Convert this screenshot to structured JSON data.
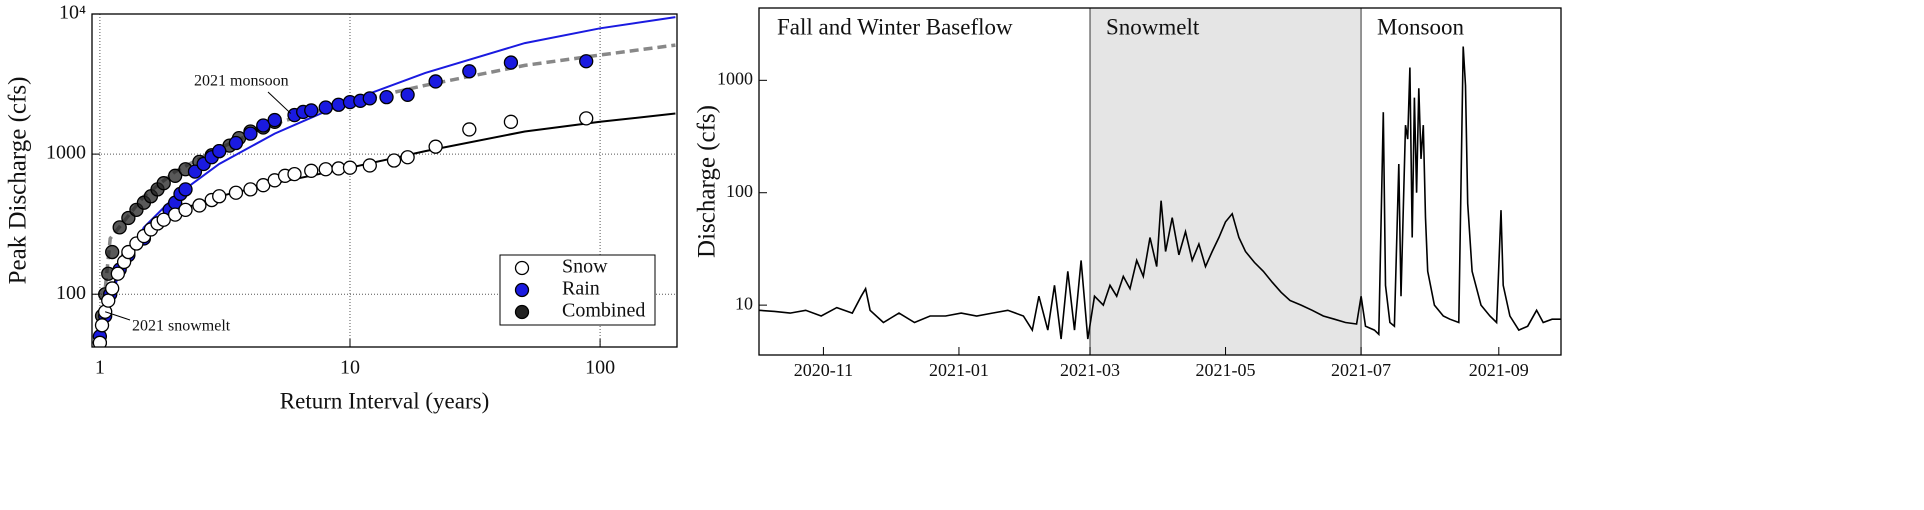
{
  "chart_data": [
    {
      "type": "scatter",
      "xlabel": "Return Interval (years)",
      "ylabel": "Peak Discharge (cfs)",
      "xlog": true,
      "ylog": true,
      "grid": true,
      "legend": "lower right",
      "xlim": [
        0.93,
        203
      ],
      "ylim": [
        42,
        10000
      ],
      "xticks": [
        1,
        10,
        100
      ],
      "yticks": [
        100,
        1000,
        {
          "value": 10000,
          "label": "10⁴"
        }
      ],
      "series": [
        {
          "name": "Snow",
          "color": "#ffffff",
          "edge": "#000000",
          "x": [
            1.0,
            1.02,
            1.05,
            1.08,
            1.12,
            1.18,
            1.25,
            1.3,
            1.4,
            1.5,
            1.6,
            1.7,
            1.8,
            2.0,
            2.2,
            2.5,
            2.8,
            3.0,
            3.5,
            4.0,
            4.5,
            5.0,
            5.5,
            6.0,
            7,
            8,
            9,
            10,
            12,
            15,
            17,
            22,
            30,
            44,
            88
          ],
          "values": [
            45,
            60,
            75,
            90,
            110,
            140,
            170,
            200,
            230,
            260,
            290,
            320,
            340,
            370,
            400,
            430,
            470,
            500,
            530,
            560,
            600,
            650,
            700,
            720,
            760,
            780,
            790,
            800,
            830,
            900,
            950,
            1130,
            1500,
            1700,
            1800
          ]
        },
        {
          "name": "Rain",
          "color": "#1a1ae0",
          "edge": "#000000",
          "x": [
            1.0,
            1.05,
            1.1,
            1.2,
            1.3,
            1.5,
            1.7,
            1.9,
            2.0,
            2.1,
            2.2,
            2.4,
            2.6,
            2.8,
            3,
            3.5,
            4,
            4.5,
            5,
            6,
            6.5,
            7,
            8,
            9,
            10,
            11,
            12,
            14,
            17,
            22,
            30,
            44,
            88
          ],
          "values": [
            50,
            70,
            100,
            150,
            190,
            250,
            320,
            400,
            450,
            520,
            560,
            750,
            850,
            950,
            1050,
            1200,
            1400,
            1600,
            1750,
            1900,
            2000,
            2050,
            2150,
            2250,
            2350,
            2400,
            2500,
            2550,
            2650,
            3300,
            3900,
            4500,
            4600
          ]
        },
        {
          "name": "Combined",
          "color": "#222222",
          "edge": "#000000",
          "x": [
            1.0,
            1.02,
            1.05,
            1.08,
            1.12,
            1.2,
            1.3,
            1.4,
            1.5,
            1.6,
            1.7,
            1.8,
            2.0,
            2.2,
            2.5,
            2.8,
            3,
            3.3,
            3.6,
            4,
            4.5,
            5
          ],
          "values": [
            45,
            70,
            100,
            140,
            200,
            300,
            350,
            400,
            450,
            500,
            560,
            620,
            700,
            780,
            880,
            980,
            1050,
            1150,
            1300,
            1450,
            1550,
            1700
          ]
        }
      ],
      "fits": [
        {
          "color": "#000000",
          "dashed": false,
          "x": [
            1,
            1.2,
            1.5,
            2,
            3,
            5,
            10,
            20,
            50,
            100,
            200
          ],
          "values": [
            45,
            170,
            280,
            390,
            500,
            620,
            800,
            1050,
            1450,
            1700,
            1950
          ]
        },
        {
          "color": "#1a1ae0",
          "dashed": false,
          "x": [
            1,
            1.2,
            1.5,
            2,
            3,
            5,
            10,
            20,
            50,
            100,
            200
          ],
          "values": [
            45,
            150,
            300,
            500,
            850,
            1400,
            2400,
            3800,
            6200,
            7900,
            9500
          ]
        },
        {
          "color": "#888888",
          "dashed": true,
          "x": [
            1,
            1.1,
            1.5,
            2,
            3,
            5,
            10,
            20,
            50,
            100,
            200
          ],
          "values": [
            45,
            250,
            500,
            750,
            1100,
            1650,
            2350,
            3100,
            4300,
            5100,
            6000
          ]
        }
      ],
      "annotations": [
        "2021 monsoon",
        "2021 snowmelt"
      ]
    },
    {
      "type": "line",
      "ylabel": "Discharge (cfs)",
      "ylog": true,
      "color": "#000000",
      "xlim": [
        "2020-10-03",
        "2021-09-29"
      ],
      "ylim": [
        3.6,
        4400
      ],
      "xticks": [
        "2020-11",
        "2021-01",
        "2021-03",
        "2021-05",
        "2021-07",
        "2021-09"
      ],
      "yticks": [
        10,
        100,
        1000
      ],
      "period_boundaries": [
        "2021-03-01",
        "2021-07-01"
      ],
      "periods": [
        {
          "label": "Fall and Winter Baseflow",
          "shaded": false
        },
        {
          "label": "Snowmelt",
          "shaded": true
        },
        {
          "label": "Monsoon",
          "shaded": false
        }
      ],
      "shade_color": "#e5e5e5",
      "x": [
        "2020-10-03",
        "2020-10-10",
        "2020-10-17",
        "2020-10-24",
        "2020-10-31",
        "2020-11-07",
        "2020-11-14",
        "2020-11-18",
        "2020-11-20",
        "2020-11-22",
        "2020-11-28",
        "2020-12-05",
        "2020-12-12",
        "2020-12-19",
        "2020-12-26",
        "2021-01-02",
        "2021-01-09",
        "2021-01-16",
        "2021-01-23",
        "2021-01-30",
        "2021-02-03",
        "2021-02-06",
        "2021-02-10",
        "2021-02-13",
        "2021-02-16",
        "2021-02-19",
        "2021-02-22",
        "2021-02-25",
        "2021-02-28",
        "2021-03-03",
        "2021-03-07",
        "2021-03-10",
        "2021-03-13",
        "2021-03-16",
        "2021-03-19",
        "2021-03-22",
        "2021-03-25",
        "2021-03-28",
        "2021-03-31",
        "2021-04-02",
        "2021-04-04",
        "2021-04-07",
        "2021-04-10",
        "2021-04-13",
        "2021-04-16",
        "2021-04-19",
        "2021-04-22",
        "2021-04-25",
        "2021-04-28",
        "2021-05-01",
        "2021-05-04",
        "2021-05-07",
        "2021-05-10",
        "2021-05-14",
        "2021-05-18",
        "2021-05-22",
        "2021-05-26",
        "2021-05-30",
        "2021-06-04",
        "2021-06-09",
        "2021-06-14",
        "2021-06-19",
        "2021-06-24",
        "2021-06-29",
        "2021-07-01",
        "2021-07-03",
        "2021-07-07",
        "2021-07-09",
        "2021-07-11",
        "2021-07-12",
        "2021-07-14",
        "2021-07-16",
        "2021-07-18",
        "2021-07-19",
        "2021-07-21",
        "2021-07-22",
        "2021-07-23",
        "2021-07-24",
        "2021-07-25",
        "2021-07-26",
        "2021-07-27",
        "2021-07-28",
        "2021-07-29",
        "2021-07-30",
        "2021-07-31",
        "2021-08-03",
        "2021-08-07",
        "2021-08-10",
        "2021-08-14",
        "2021-08-16",
        "2021-08-17",
        "2021-08-18",
        "2021-08-20",
        "2021-08-24",
        "2021-08-28",
        "2021-08-31",
        "2021-09-02",
        "2021-09-03",
        "2021-09-06",
        "2021-09-10",
        "2021-09-14",
        "2021-09-18",
        "2021-09-21",
        "2021-09-25",
        "2021-09-29"
      ],
      "values": [
        9,
        8.8,
        8.5,
        9,
        8,
        9.5,
        8.5,
        12,
        14,
        9,
        7,
        8.5,
        7,
        8,
        8,
        8.5,
        8,
        8.5,
        9,
        8,
        6,
        12,
        6,
        15,
        5,
        20,
        6,
        25,
        5,
        12,
        10,
        15,
        12,
        18,
        14,
        25,
        18,
        40,
        22,
        85,
        30,
        60,
        28,
        45,
        25,
        35,
        22,
        30,
        40,
        55,
        65,
        40,
        30,
        24,
        20,
        16,
        13,
        11,
        10,
        9,
        8,
        7.5,
        7,
        6.8,
        12,
        6.5,
        6,
        5.5,
        520,
        15,
        7,
        6.5,
        180,
        12,
        400,
        300,
        1300,
        40,
        700,
        100,
        850,
        200,
        400,
        60,
        20,
        10,
        8,
        7.5,
        7,
        2000,
        900,
        80,
        20,
        10,
        8,
        7,
        70,
        15,
        8,
        6,
        6.5,
        9,
        7,
        7.5,
        7.5
      ]
    }
  ]
}
